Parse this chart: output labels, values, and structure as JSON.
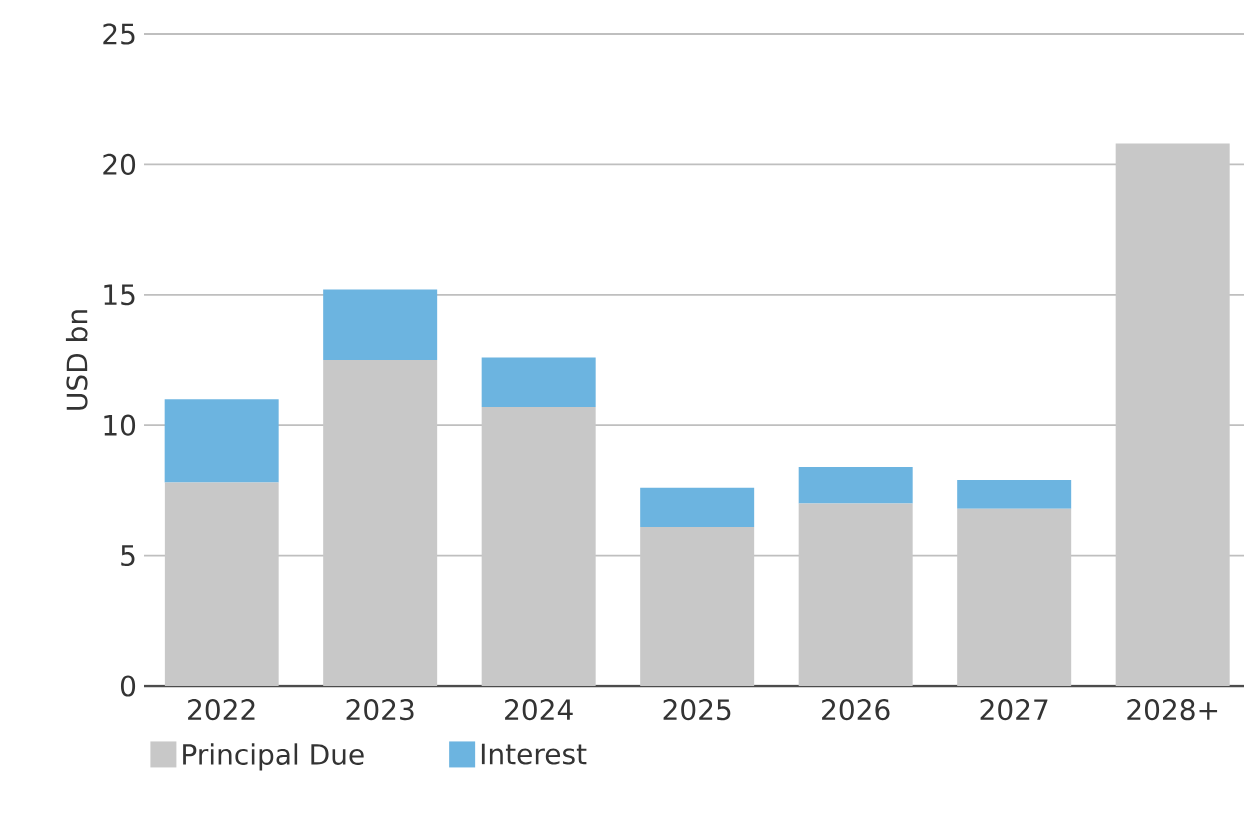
{
  "chart_data": {
    "type": "bar",
    "ylabel": "USD bn",
    "stacked": true,
    "grid": "y",
    "legend": "bottom",
    "categories": [
      "2022",
      "2023",
      "2024",
      "2025",
      "2026",
      "2027",
      "2028+"
    ],
    "series": [
      {
        "name": "Principal Due",
        "color": "#c8c8c8",
        "values": [
          7.8,
          12.5,
          10.7,
          6.1,
          7.0,
          6.8,
          20.8
        ]
      },
      {
        "name": "Interest",
        "color": "#6cb4e0",
        "values": [
          3.2,
          2.7,
          1.9,
          1.5,
          1.4,
          1.1,
          0
        ]
      }
    ],
    "ylim": [
      0,
      25
    ],
    "yticks": [
      0,
      5,
      10,
      15,
      20,
      25
    ]
  }
}
